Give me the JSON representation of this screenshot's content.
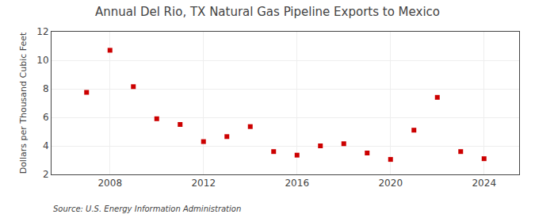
{
  "chart_data": {
    "type": "scatter",
    "title": "Annual Del Rio, TX Natural Gas Pipeline Exports to Mexico",
    "ylabel": "Dollars per Thousand Cubic Feet",
    "annotations": [
      "Source: U.S. Energy Information Administration"
    ],
    "x": [
      2007,
      2008,
      2009,
      2010,
      2011,
      2012,
      2013,
      2014,
      2015,
      2016,
      2017,
      2018,
      2019,
      2020,
      2021,
      2022,
      2023,
      2024
    ],
    "values": [
      7.75,
      10.7,
      8.15,
      5.9,
      5.5,
      4.3,
      4.65,
      5.35,
      3.6,
      3.35,
      4.0,
      4.15,
      3.5,
      3.05,
      5.1,
      7.4,
      3.6,
      3.1
    ],
    "color": "#cc0000",
    "marker": "square",
    "xlim": [
      2005.5,
      2025.5
    ],
    "xticks": [
      2008,
      2012,
      2016,
      2020,
      2024
    ],
    "ylim": [
      2,
      12
    ],
    "yticks": [
      2,
      4,
      6,
      8,
      10,
      12
    ],
    "grid": true
  }
}
